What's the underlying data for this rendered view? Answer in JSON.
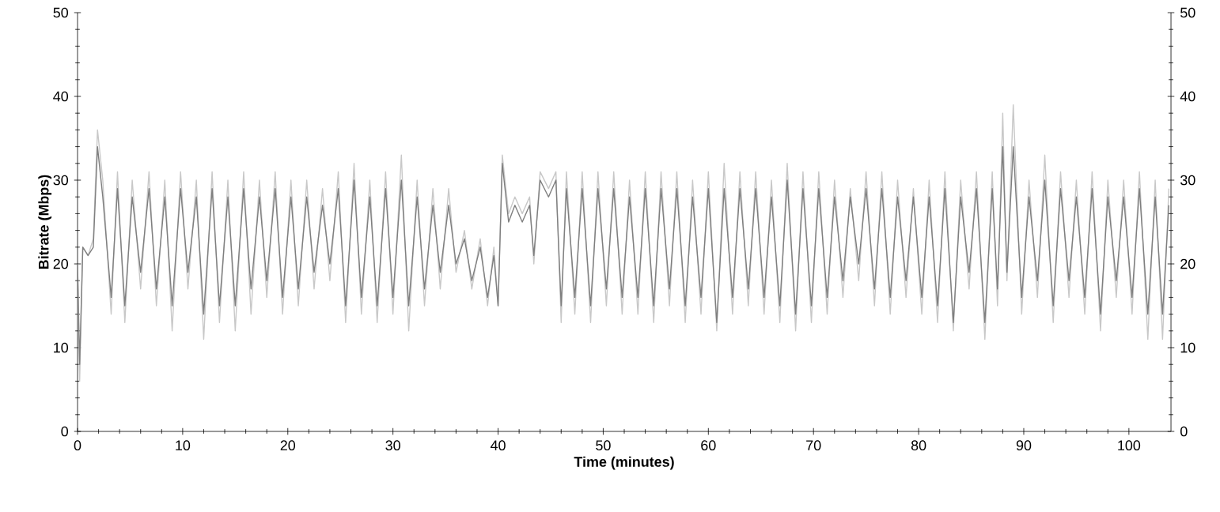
{
  "chart_data": {
    "type": "line",
    "xlabel": "Time (minutes)",
    "ylabel": "Bitrate (Mbps)",
    "xlim": [
      0,
      104
    ],
    "xticks": [
      0,
      10,
      20,
      30,
      40,
      50,
      60,
      70,
      80,
      90,
      100
    ],
    "ylim": [
      0,
      50
    ],
    "yticks": [
      0,
      10,
      20,
      30,
      40,
      50
    ],
    "y2lim": [
      0,
      50
    ],
    "y2ticks": [
      0,
      10,
      20,
      30,
      40,
      50
    ],
    "x": [
      0,
      0.2,
      0.5,
      1,
      1.5,
      1.9,
      2.4,
      3.2,
      3.8,
      4.5,
      5.2,
      6,
      6.8,
      7.5,
      8.3,
      9,
      9.8,
      10.5,
      11.3,
      12,
      12.8,
      13.5,
      14.3,
      15,
      15.8,
      16.5,
      17.3,
      18,
      18.8,
      19.5,
      20.3,
      21,
      21.8,
      22.5,
      23.3,
      24,
      24.8,
      25.5,
      26.3,
      27,
      27.8,
      28.5,
      29.3,
      30,
      30.8,
      31.5,
      32.3,
      33,
      33.8,
      34.5,
      35.3,
      36,
      36.8,
      37.5,
      38.3,
      39,
      39.6,
      40,
      40.4,
      41,
      41.6,
      42.3,
      43,
      43.4,
      44,
      44.8,
      45.5,
      46,
      46.5,
      47.3,
      48,
      48.8,
      49.5,
      50.3,
      51,
      51.8,
      52.5,
      53.3,
      54,
      54.8,
      55.5,
      56.3,
      57,
      57.8,
      58.5,
      59.3,
      60,
      60.8,
      61.5,
      62.3,
      63,
      63.8,
      64.5,
      65.3,
      66,
      66.8,
      67.5,
      68.3,
      69,
      69.8,
      70.5,
      71.3,
      72,
      72.8,
      73.5,
      74.3,
      75,
      75.8,
      76.5,
      77.3,
      78,
      78.8,
      79.5,
      80.3,
      81,
      81.8,
      82.5,
      83.3,
      84,
      84.8,
      85.5,
      86.3,
      87,
      87.5,
      88,
      88.4,
      89,
      89.8,
      90.5,
      91.3,
      92,
      92.8,
      93.5,
      94.3,
      95,
      95.8,
      96.5,
      97.3,
      98,
      98.8,
      99.5,
      100.3,
      101,
      101.8,
      102.5,
      103.2,
      103.8
    ],
    "series": [
      {
        "color": "#c8c8c8",
        "values": [
          20,
          6,
          22,
          21,
          23,
          36,
          30,
          14,
          31,
          13,
          30,
          17,
          31,
          15,
          30,
          12,
          31,
          17,
          30,
          11,
          31,
          13,
          30,
          12,
          31,
          14,
          30,
          16,
          31,
          14,
          30,
          15,
          30,
          17,
          29,
          18,
          31,
          13,
          32,
          14,
          30,
          13,
          31,
          14,
          33,
          12,
          30,
          15,
          29,
          17,
          29,
          19,
          24,
          17,
          23,
          15,
          22,
          15,
          33,
          26,
          28,
          26,
          28,
          20,
          31,
          29,
          31,
          13,
          31,
          14,
          31,
          13,
          31,
          15,
          31,
          14,
          30,
          14,
          31,
          13,
          31,
          15,
          31,
          13,
          30,
          14,
          31,
          12,
          32,
          14,
          31,
          15,
          31,
          14,
          30,
          13,
          32,
          12,
          31,
          13,
          31,
          14,
          30,
          16,
          29,
          18,
          31,
          15,
          31,
          14,
          30,
          16,
          29,
          14,
          30,
          13,
          31,
          12,
          30,
          17,
          31,
          11,
          31,
          15,
          38,
          18,
          39,
          14,
          30,
          16,
          33,
          13,
          31,
          16,
          30,
          14,
          31,
          12,
          30,
          16,
          30,
          14,
          31,
          11,
          30,
          11,
          29
        ]
      },
      {
        "color": "#7f7f7f",
        "values": [
          20,
          8,
          22,
          21,
          22,
          34,
          28,
          16,
          29,
          15,
          28,
          19,
          29,
          17,
          28,
          15,
          29,
          19,
          28,
          14,
          29,
          15,
          28,
          15,
          29,
          17,
          28,
          18,
          29,
          16,
          28,
          17,
          28,
          19,
          27,
          20,
          29,
          15,
          30,
          16,
          28,
          15,
          29,
          16,
          30,
          15,
          28,
          17,
          27,
          19,
          27,
          20,
          23,
          18,
          22,
          16,
          21,
          15,
          32,
          25,
          27,
          25,
          27,
          21,
          30,
          28,
          30,
          15,
          29,
          16,
          29,
          15,
          29,
          17,
          29,
          16,
          28,
          16,
          29,
          15,
          29,
          17,
          29,
          15,
          28,
          16,
          29,
          13,
          29,
          16,
          29,
          17,
          29,
          16,
          28,
          15,
          30,
          14,
          29,
          15,
          29,
          16,
          28,
          18,
          28,
          20,
          29,
          17,
          29,
          16,
          28,
          18,
          28,
          16,
          28,
          15,
          29,
          13,
          28,
          19,
          29,
          13,
          29,
          17,
          34,
          19,
          34,
          16,
          28,
          18,
          30,
          15,
          29,
          18,
          28,
          16,
          29,
          14,
          28,
          18,
          28,
          16,
          29,
          14,
          28,
          14,
          27
        ]
      }
    ]
  }
}
